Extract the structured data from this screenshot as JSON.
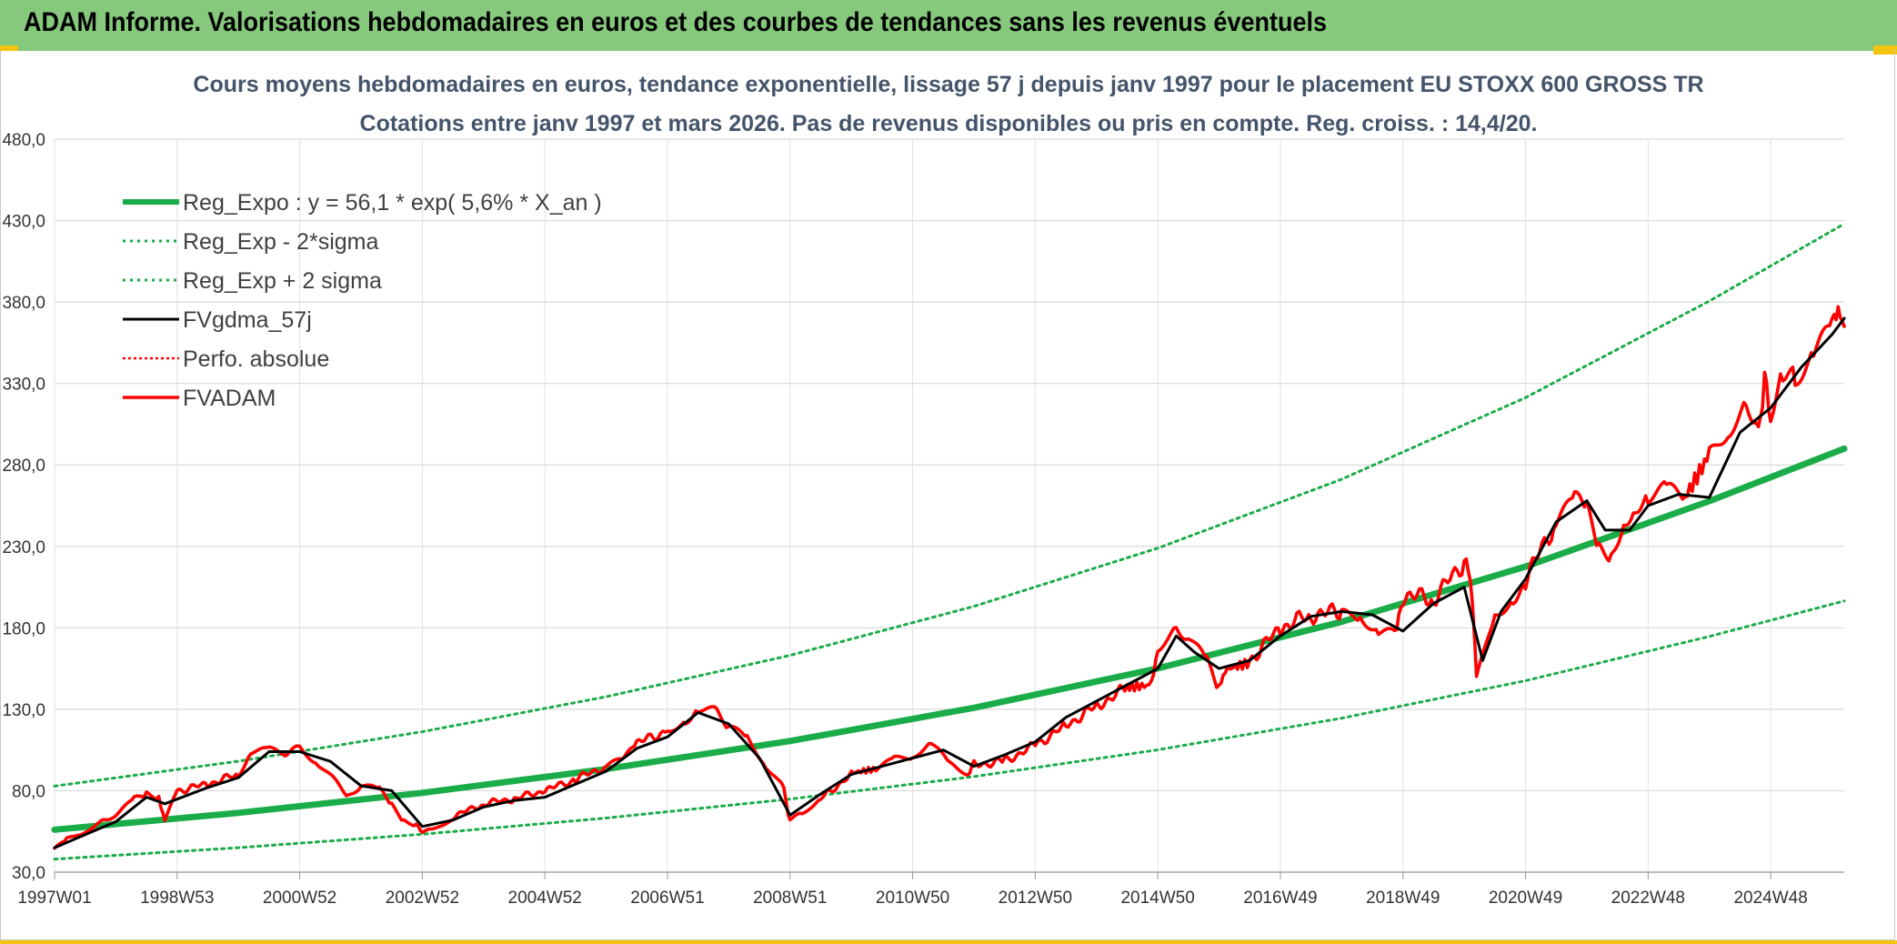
{
  "banner": {
    "title": "ADAM Informe. Valorisations hebdomadaires en euros et des courbes de tendances sans les revenus éventuels"
  },
  "colors": {
    "banner": "#86c97c",
    "accent": "#f2c40f",
    "reg": "#1aac48",
    "smooth": "#000000",
    "price": "#ff0000"
  },
  "chart_data": {
    "type": "line",
    "title": "Cours moyens hebdomadaires en euros, tendance exponentielle, lissage 57 j depuis janv 1997 pour le placement EU STOXX 600 GROSS TR",
    "subtitle": "Cotations entre janv 1997 et mars 2026. Pas de revenus disponibles ou pris en compte. Reg. croiss. : 14,4/20.",
    "xlabel": "",
    "ylabel": "",
    "x_range": [
      "1997W01",
      "2026W12"
    ],
    "ylim": [
      30,
      480
    ],
    "yticks": [
      30,
      80,
      130,
      180,
      230,
      280,
      330,
      380,
      430,
      480
    ],
    "ytick_labels": [
      "30,0",
      "80,0",
      "130,0",
      "180,0",
      "230,0",
      "280,0",
      "330,0",
      "380,0",
      "430,0",
      "480,0"
    ],
    "xtick_labels": [
      "1997W01",
      "1998W53",
      "2000W52",
      "2002W52",
      "2004W52",
      "2006W51",
      "2008W51",
      "2010W50",
      "2012W50",
      "2014W50",
      "2016W49",
      "2018W49",
      "2020W49",
      "2022W48",
      "2024W48"
    ],
    "xtick_years": [
      1997.0,
      1999.0,
      2001.0,
      2003.0,
      2005.0,
      2007.0,
      2009.0,
      2011.0,
      2013.0,
      2015.0,
      2017.0,
      2019.0,
      2021.0,
      2023.0,
      2025.0
    ],
    "grid": true,
    "legend_position": "top-left",
    "series": [
      {
        "name": "Reg_Expo : y = 56,1 * exp( 5,6% *  X_an )",
        "style": "solid-thick",
        "color": "#1aac48",
        "x": [
          1997.0,
          2000.0,
          2003.0,
          2006.0,
          2009.0,
          2012.0,
          2015.0,
          2018.0,
          2021.0,
          2024.0,
          2026.2
        ],
        "y": [
          56.1,
          66.4,
          78.7,
          93.3,
          110.5,
          130.9,
          155.1,
          183.7,
          217.6,
          257.8,
          290.0
        ]
      },
      {
        "name": "Reg_Exp - 2*sigma",
        "style": "dotted",
        "color": "#1aac48",
        "x": [
          1997.0,
          2000.0,
          2003.0,
          2006.0,
          2009.0,
          2012.0,
          2015.0,
          2018.0,
          2021.0,
          2024.0,
          2026.2
        ],
        "y": [
          38.0,
          45.0,
          53.3,
          63.2,
          74.9,
          88.7,
          105.1,
          124.5,
          147.5,
          174.7,
          196.5
        ]
      },
      {
        "name": "Reg_Exp + 2 sigma",
        "style": "dotted",
        "color": "#1aac48",
        "x": [
          1997.0,
          2000.0,
          2003.0,
          2006.0,
          2009.0,
          2012.0,
          2015.0,
          2018.0,
          2021.0,
          2024.0,
          2026.2
        ],
        "y": [
          82.8,
          98.1,
          116.2,
          137.7,
          163.1,
          193.2,
          228.9,
          271.2,
          321.3,
          380.6,
          428.0
        ]
      },
      {
        "name": "FVgdma_57j",
        "style": "solid",
        "color": "#000000",
        "x": [
          1997.0,
          1997.5,
          1998.0,
          1998.5,
          1998.8,
          1999.5,
          2000.0,
          2000.5,
          2001.0,
          2001.5,
          2002.0,
          2002.5,
          2003.0,
          2003.5,
          2004.0,
          2004.5,
          2005.0,
          2005.5,
          2006.0,
          2006.5,
          2007.0,
          2007.5,
          2008.0,
          2008.5,
          2009.0,
          2009.5,
          2010.0,
          2010.5,
          2011.0,
          2011.5,
          2012.0,
          2012.5,
          2013.0,
          2013.5,
          2014.0,
          2014.5,
          2015.0,
          2015.3,
          2015.6,
          2016.0,
          2016.5,
          2017.0,
          2017.5,
          2018.0,
          2018.5,
          2019.0,
          2019.5,
          2020.0,
          2020.3,
          2020.6,
          2021.0,
          2021.5,
          2022.0,
          2022.3,
          2022.7,
          2023.0,
          2023.5,
          2024.0,
          2024.5,
          2025.0,
          2025.5,
          2026.0,
          2026.2
        ],
        "y": [
          45,
          53,
          61,
          76,
          72,
          82,
          88,
          104,
          104,
          98,
          83,
          80,
          58,
          62,
          70,
          74,
          76,
          84,
          92,
          106,
          113,
          128,
          121,
          100,
          65,
          78,
          90,
          95,
          100,
          105,
          95,
          102,
          110,
          125,
          135,
          145,
          155,
          175,
          165,
          155,
          160,
          175,
          187,
          190,
          188,
          178,
          195,
          205,
          160,
          190,
          210,
          245,
          258,
          240,
          240,
          255,
          262,
          260,
          300,
          315,
          340,
          360,
          370
        ]
      },
      {
        "name": "Perfo. absolue",
        "style": "dotted",
        "color": "#ff0000",
        "x": [],
        "y": []
      },
      {
        "name": "FVADAM",
        "style": "solid-thick",
        "color": "#ff0000",
        "x": [
          1997.0,
          1997.2,
          1997.5,
          1997.8,
          1998.0,
          1998.3,
          1998.5,
          1998.7,
          1998.8,
          1999.0,
          1999.5,
          2000.0,
          2000.2,
          2000.5,
          2000.8,
          2001.0,
          2001.3,
          2001.6,
          2001.8,
          2002.0,
          2002.3,
          2002.5,
          2002.7,
          2002.9,
          2003.0,
          2003.2,
          2003.5,
          2004.0,
          2004.5,
          2005.0,
          2005.5,
          2006.0,
          2006.3,
          2006.5,
          2007.0,
          2007.3,
          2007.5,
          2007.8,
          2008.0,
          2008.3,
          2008.6,
          2008.9,
          2009.0,
          2009.2,
          2009.5,
          2010.0,
          2010.4,
          2010.7,
          2011.0,
          2011.3,
          2011.6,
          2011.9,
          2012.0,
          2012.5,
          2013.0,
          2013.5,
          2014.0,
          2014.5,
          2014.9,
          2015.0,
          2015.3,
          2015.5,
          2015.8,
          2016.0,
          2016.1,
          2016.5,
          2017.0,
          2017.5,
          2018.0,
          2018.3,
          2018.6,
          2018.9,
          2019.0,
          2019.5,
          2020.0,
          2020.1,
          2020.2,
          2020.5,
          2020.8,
          2021.0,
          2021.5,
          2021.8,
          2022.0,
          2022.2,
          2022.4,
          2022.6,
          2022.8,
          2023.0,
          2023.3,
          2023.6,
          2024.0,
          2024.3,
          2024.6,
          2024.8,
          2024.9,
          2025.0,
          2025.2,
          2025.4,
          2025.7,
          2026.0,
          2026.1,
          2026.2
        ],
        "y": [
          44,
          50,
          55,
          62,
          65,
          75,
          78,
          76,
          62,
          80,
          84,
          90,
          105,
          106,
          104,
          108,
          98,
          86,
          78,
          84,
          82,
          72,
          62,
          60,
          55,
          57,
          64,
          72,
          75,
          80,
          87,
          95,
          100,
          109,
          117,
          122,
          130,
          128,
          118,
          112,
          95,
          80,
          62,
          65,
          75,
          90,
          92,
          98,
          100,
          108,
          95,
          90,
          96,
          98,
          108,
          120,
          132,
          143,
          145,
          168,
          180,
          175,
          160,
          143,
          155,
          160,
          180,
          188,
          190,
          190,
          180,
          178,
          200,
          198,
          220,
          215,
          150,
          190,
          200,
          210,
          245,
          262,
          255,
          230,
          225,
          245,
          255,
          262,
          265,
          260,
          285,
          300,
          315,
          305,
          330,
          310,
          335,
          330,
          345,
          360,
          380,
          365
        ]
      }
    ]
  }
}
